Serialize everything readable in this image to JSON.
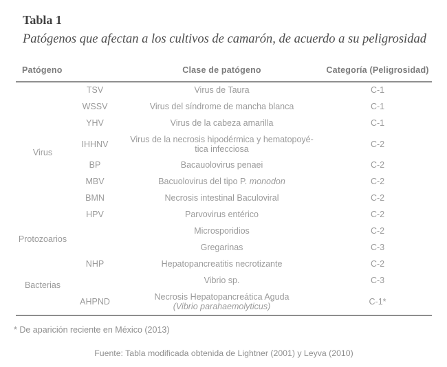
{
  "title": "Tabla 1",
  "subtitle": "Patógenos que afectan a los cultivos de camarón, de acuerdo a su peligrosidad",
  "table": {
    "headers": [
      "Patógeno",
      "Clase de patógeno",
      "Categoría (Peligrosidad)"
    ],
    "groups": [
      {
        "name": "Virus",
        "rows": [
          {
            "abbr": "TSV",
            "lines": [
              [
                {
                  "t": "Virus de Taura"
                }
              ]
            ],
            "cat": "C-1"
          },
          {
            "abbr": "WSSV",
            "lines": [
              [
                {
                  "t": "Virus del síndrome de mancha blanca"
                }
              ]
            ],
            "cat": "C-1"
          },
          {
            "abbr": "YHV",
            "lines": [
              [
                {
                  "t": "Virus de la cabeza amarilla"
                }
              ]
            ],
            "cat": "C-1"
          },
          {
            "abbr": "IHHNV",
            "lines": [
              [
                {
                  "t": "Virus de la necrosis hipodérmica y hematopoyé-"
                }
              ],
              [
                {
                  "t": "tica infecciosa"
                }
              ]
            ],
            "cat": "C-2"
          },
          {
            "abbr": "BP",
            "lines": [
              [
                {
                  "t": "Bacauolovirus penaei"
                }
              ]
            ],
            "cat": "C-2"
          },
          {
            "abbr": "MBV",
            "lines": [
              [
                {
                  "t": "Bacuolovirus del tipo P. "
                },
                {
                  "t": "monodon",
                  "i": true
                }
              ]
            ],
            "cat": "C-2"
          },
          {
            "abbr": "BMN",
            "lines": [
              [
                {
                  "t": "Necrosis intestinal Baculoviral"
                }
              ]
            ],
            "cat": "C-2"
          },
          {
            "abbr": "HPV",
            "lines": [
              [
                {
                  "t": "Parvovirus entérico"
                }
              ]
            ],
            "cat": "C-2"
          }
        ]
      },
      {
        "name": "Protozoarios",
        "rows": [
          {
            "abbr": "",
            "lines": [
              [
                {
                  "t": "Microsporidios"
                }
              ]
            ],
            "cat": "C-2"
          },
          {
            "abbr": "",
            "lines": [
              [
                {
                  "t": "Gregarinas"
                }
              ]
            ],
            "cat": "C-3"
          }
        ]
      },
      {
        "name": "Bacterias",
        "rows": [
          {
            "abbr": "NHP",
            "lines": [
              [
                {
                  "t": "Hepatopancreatitis necrotizante"
                }
              ]
            ],
            "cat": "C-2"
          },
          {
            "abbr": "",
            "lines": [
              [
                {
                  "t": "Vibrio sp."
                }
              ]
            ],
            "cat": "C-3"
          },
          {
            "abbr": "AHPND",
            "lines": [
              [
                {
                  "t": "Necrosis Hepatopancreática Aguda"
                }
              ],
              [
                {
                  "t": "(Vibrio parahaemolyticus)",
                  "i": true
                }
              ]
            ],
            "cat": "C-1*"
          }
        ]
      }
    ]
  },
  "footnote": "* De aparición reciente en México (2013)",
  "source": "Fuente: Tabla modificada obtenida de Lightner (2001) y Leyva (2010)"
}
